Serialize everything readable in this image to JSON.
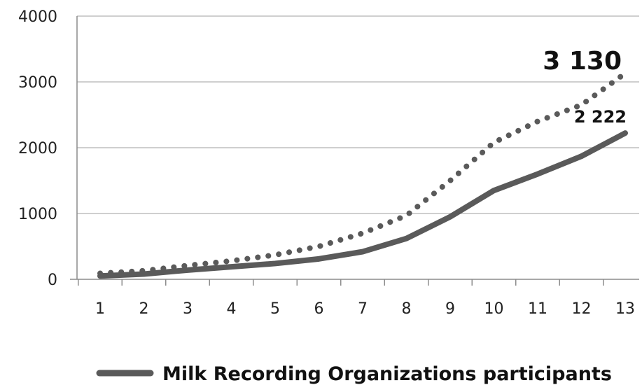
{
  "chart_data": {
    "type": "line",
    "x": [
      1,
      2,
      3,
      4,
      5,
      6,
      7,
      8,
      9,
      10,
      11,
      12,
      13
    ],
    "categories": [
      "1",
      "2",
      "3",
      "4",
      "5",
      "6",
      "7",
      "8",
      "9",
      "10",
      "11",
      "12",
      "13"
    ],
    "ylim": [
      0,
      4000
    ],
    "yticks": [
      0,
      1000,
      2000,
      3000,
      4000
    ],
    "ytick_labels": [
      "0",
      "1000",
      "2000",
      "3000",
      "4000"
    ],
    "grid": "horizontal",
    "legend_position": "bottom",
    "colors": {
      "series": "#5a5a5a",
      "grid": "#bfbfbf",
      "axis": "#8c8c8c"
    },
    "series": [
      {
        "name": "Milk Recording Organizations participants",
        "style": "solid",
        "values": [
          50,
          80,
          140,
          190,
          240,
          310,
          420,
          620,
          950,
          1350,
          1600,
          1870,
          2222
        ]
      },
      {
        "name": "",
        "style": "dotted",
        "values": [
          90,
          130,
          210,
          280,
          370,
          500,
          700,
          970,
          1500,
          2080,
          2400,
          2650,
          3130
        ]
      }
    ],
    "annotations": [
      {
        "text": "3 130",
        "series": 1,
        "point": 12,
        "emphasis": "large"
      },
      {
        "text": "2 222",
        "series": 0,
        "point": 12,
        "emphasis": "small"
      }
    ]
  }
}
